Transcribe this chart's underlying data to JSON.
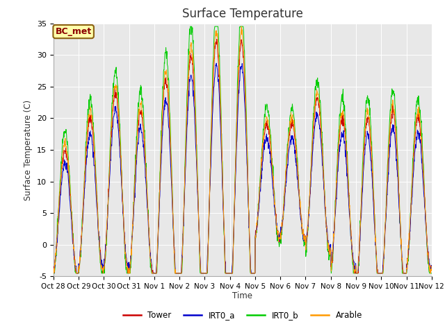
{
  "title": "Surface Temperature",
  "ylabel": "Surface Temperature (C)",
  "xlabel": "Time",
  "ylim": [
    -5,
    35
  ],
  "yticks": [
    -5,
    0,
    5,
    10,
    15,
    20,
    25,
    30,
    35
  ],
  "legend_labels": [
    "Tower",
    "IRT0_a",
    "IRT0_b",
    "Arable"
  ],
  "legend_colors": [
    "#cc0000",
    "#0000cc",
    "#00cc00",
    "#ff9900"
  ],
  "bc_met_label": "BC_met",
  "fig_bg_color": "#ffffff",
  "ax_bg_color": "#e8e8e8",
  "xtick_labels": [
    "Oct 28",
    "Oct 29",
    "Oct 30",
    "Oct 31",
    "Nov 1",
    "Nov 2",
    "Nov 3",
    "Nov 4",
    "Nov 5",
    "Nov 6",
    "Nov 7",
    "Nov 8",
    "Nov 9",
    "Nov 10",
    "Nov 11",
    "Nov 12"
  ],
  "n_days": 15,
  "pts_per_day": 96,
  "base_temps": [
    5,
    8,
    10,
    8,
    8,
    10,
    10,
    10,
    10,
    10,
    11,
    8,
    6,
    7,
    8
  ],
  "amp_temps": [
    10,
    12,
    14,
    13,
    18,
    20,
    22,
    22,
    9,
    9,
    12,
    12,
    14,
    14,
    12
  ]
}
